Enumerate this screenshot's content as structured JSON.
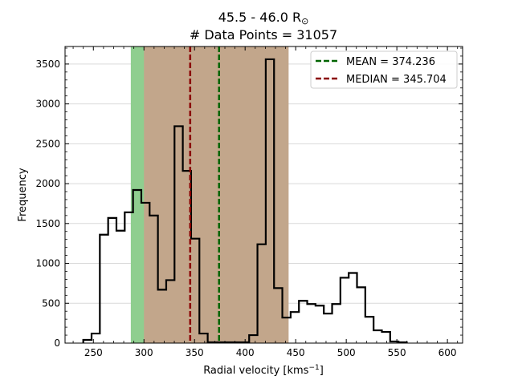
{
  "chart_data": {
    "type": "histogram",
    "title_line1": "45.5 - 46.0 R",
    "title_symbol": "⊙",
    "title_line2": "# Data Points = 31057",
    "xlabel_main": "Radial velocity [kms",
    "xlabel_sup": "−1",
    "xlabel_end": "]",
    "ylabel": "Frequency",
    "xlim": [
      222,
      615
    ],
    "ylim": [
      0,
      3720
    ],
    "xticks": [
      250,
      300,
      350,
      400,
      450,
      500,
      550,
      600
    ],
    "yticks": [
      0,
      500,
      1000,
      1500,
      2000,
      2500,
      3000,
      3500
    ],
    "grid": "horizontal",
    "bin_width": 8.2,
    "bin_start": 240,
    "counts": [
      40,
      120,
      1360,
      1570,
      1410,
      1640,
      1920,
      1760,
      1600,
      670,
      790,
      2720,
      2160,
      1310,
      120,
      10,
      10,
      10,
      10,
      10,
      100,
      1240,
      3560,
      690,
      320,
      390,
      530,
      490,
      470,
      370,
      490,
      820,
      880,
      700,
      330,
      160,
      140,
      20,
      10
    ],
    "bands": [
      {
        "name": "outer",
        "x0": 287,
        "x1": 383,
        "color": "#8fce8f"
      },
      {
        "name": "inner",
        "x0": 300,
        "x1": 443,
        "color": "#c2a68b"
      }
    ],
    "lines": [
      {
        "name": "MEAN",
        "value": 374.236,
        "color": "#006400",
        "label": "MEAN = 374.236"
      },
      {
        "name": "MEDIAN",
        "value": 345.704,
        "color": "#8b0000",
        "label": "MEDIAN = 345.704"
      }
    ],
    "legend_position": "top-right"
  }
}
